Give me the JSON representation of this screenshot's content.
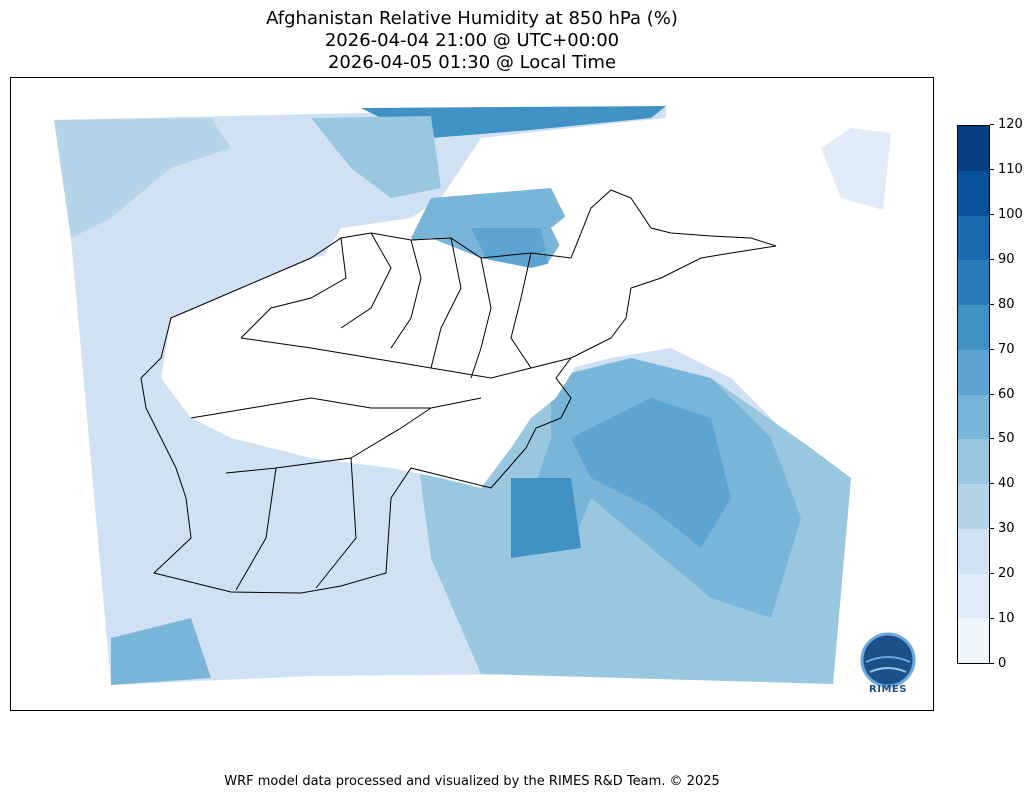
{
  "title": {
    "line1": "Afghanistan Relative Humidity at 850 hPa (%)",
    "line2": "2026-04-04 21:00 @ UTC+00:00",
    "line3": "2026-04-05 01:30 @ Local Time"
  },
  "colorbar": {
    "ticks": [
      "0",
      "10",
      "20",
      "30",
      "40",
      "50",
      "60",
      "70",
      "80",
      "90",
      "100",
      "110",
      "120"
    ],
    "colors": [
      "#eff6fc",
      "#dfebf7",
      "#cfe1f2",
      "#b6d4e9",
      "#9ac7e0",
      "#79b5d9",
      "#5ca4d1",
      "#4191c5",
      "#2c7cba",
      "#1a68ad",
      "#08529b",
      "#083d7f"
    ]
  },
  "logo": {
    "text": "RIMES"
  },
  "footer": "WRF model data processed and visualized by the RIMES R&D Team. © 2025"
}
